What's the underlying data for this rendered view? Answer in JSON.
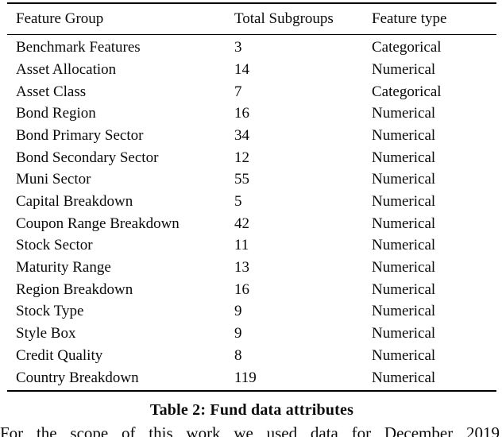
{
  "table": {
    "columns": [
      "Feature Group",
      "Total Subgroups",
      "Feature type"
    ],
    "rows": [
      {
        "feature_group": "Benchmark Features",
        "total_subgroups": "3",
        "feature_type": "Categorical"
      },
      {
        "feature_group": "Asset Allocation",
        "total_subgroups": "14",
        "feature_type": "Numerical"
      },
      {
        "feature_group": "Asset Class",
        "total_subgroups": "7",
        "feature_type": "Categorical"
      },
      {
        "feature_group": "Bond Region",
        "total_subgroups": "16",
        "feature_type": "Numerical"
      },
      {
        "feature_group": "Bond Primary Sector",
        "total_subgroups": "34",
        "feature_type": "Numerical"
      },
      {
        "feature_group": "Bond Secondary Sector",
        "total_subgroups": "12",
        "feature_type": "Numerical"
      },
      {
        "feature_group": "Muni Sector",
        "total_subgroups": "55",
        "feature_type": "Numerical"
      },
      {
        "feature_group": "Capital Breakdown",
        "total_subgroups": "5",
        "feature_type": "Numerical"
      },
      {
        "feature_group": "Coupon Range Breakdown",
        "total_subgroups": "42",
        "feature_type": "Numerical"
      },
      {
        "feature_group": "Stock Sector",
        "total_subgroups": "11",
        "feature_type": "Numerical"
      },
      {
        "feature_group": "Maturity Range",
        "total_subgroups": "13",
        "feature_type": "Numerical"
      },
      {
        "feature_group": "Region Breakdown",
        "total_subgroups": "16",
        "feature_type": "Numerical"
      },
      {
        "feature_group": "Stock Type",
        "total_subgroups": "9",
        "feature_type": "Numerical"
      },
      {
        "feature_group": "Style Box",
        "total_subgroups": "9",
        "feature_type": "Numerical"
      },
      {
        "feature_group": "Credit Quality",
        "total_subgroups": "8",
        "feature_type": "Numerical"
      },
      {
        "feature_group": "Country Breakdown",
        "total_subgroups": "119",
        "feature_type": "Numerical"
      }
    ],
    "caption": "Table 2: Fund data attributes"
  },
  "body_text": {
    "partial_line": "For the scope of this work we used data for December 2019"
  },
  "colors": {
    "text": "#0a0a0a",
    "rule": "#000000",
    "background": "#ffffff"
  }
}
